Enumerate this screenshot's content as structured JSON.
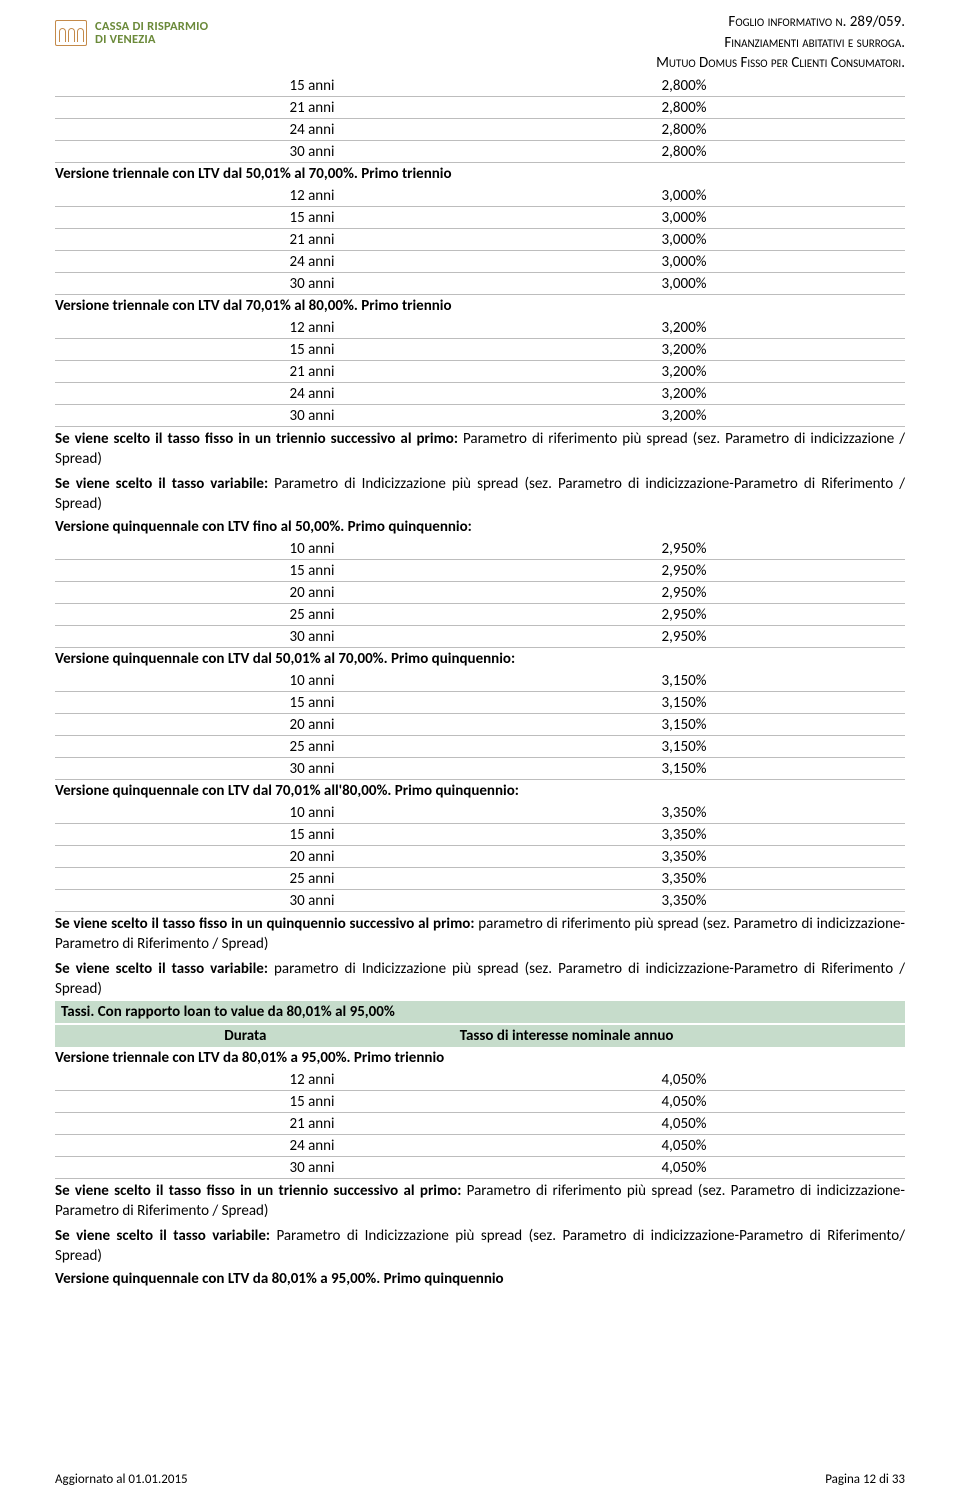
{
  "logo": {
    "line1": "CASSA DI RISPARMIO",
    "line2": "DI VENEZIA"
  },
  "header": {
    "l1a": "Foglio informativo n.",
    "l1b": " 289/059.",
    "l2": "Finanziamenti abitativi e surroga.",
    "l3a": "Mutuo Domus Fisso",
    "l3b": " per Clienti Consumatori."
  },
  "sections": [
    {
      "type": "table",
      "rows": [
        [
          "15 anni",
          "2,800%"
        ],
        [
          "21 anni",
          "2,800%"
        ],
        [
          "24 anni",
          "2,800%"
        ],
        [
          "30 anni",
          "2,800%"
        ]
      ]
    },
    {
      "type": "title",
      "text": "Versione triennale con LTV dal 50,01% al 70,00%. Primo triennio"
    },
    {
      "type": "table",
      "rows": [
        [
          "12 anni",
          "3,000%"
        ],
        [
          "15 anni",
          "3,000%"
        ],
        [
          "21 anni",
          "3,000%"
        ],
        [
          "24 anni",
          "3,000%"
        ],
        [
          "30 anni",
          "3,000%"
        ]
      ]
    },
    {
      "type": "title",
      "text": "Versione triennale con LTV dal 70,01% al 80,00%. Primo triennio"
    },
    {
      "type": "table",
      "rows": [
        [
          "12 anni",
          "3,200%"
        ],
        [
          "15 anni",
          "3,200%"
        ],
        [
          "21 anni",
          "3,200%"
        ],
        [
          "24 anni",
          "3,200%"
        ],
        [
          "30 anni",
          "3,200%"
        ]
      ]
    },
    {
      "type": "para",
      "bold": "Se viene scelto il tasso fisso in un triennio successivo al primo: ",
      "rest": "Parametro di riferimento più spread (sez. Parametro di indicizzazione / Spread)"
    },
    {
      "type": "para",
      "bold": "Se viene scelto il tasso variabile: ",
      "rest": "Parametro di Indicizzazione più spread (sez. Parametro di indicizzazione-Parametro di Riferimento / Spread)"
    },
    {
      "type": "title",
      "text": "Versione quinquennale con LTV fino al 50,00%. Primo quinquennio:"
    },
    {
      "type": "table",
      "rows": [
        [
          "10 anni",
          "2,950%"
        ],
        [
          "15 anni",
          "2,950%"
        ],
        [
          "20 anni",
          "2,950%"
        ],
        [
          "25 anni",
          "2,950%"
        ],
        [
          "30 anni",
          "2,950%"
        ]
      ]
    },
    {
      "type": "title",
      "text": "Versione quinquennale con LTV dal 50,01% al 70,00%. Primo quinquennio:"
    },
    {
      "type": "table",
      "rows": [
        [
          "10 anni",
          "3,150%"
        ],
        [
          "15 anni",
          "3,150%"
        ],
        [
          "20 anni",
          "3,150%"
        ],
        [
          "25 anni",
          "3,150%"
        ],
        [
          "30 anni",
          "3,150%"
        ]
      ]
    },
    {
      "type": "title",
      "text": "Versione quinquennale con LTV dal 70,01% all'80,00%. Primo quinquennio:"
    },
    {
      "type": "table",
      "rows": [
        [
          "10 anni",
          "3,350%"
        ],
        [
          "15 anni",
          "3,350%"
        ],
        [
          "20 anni",
          "3,350%"
        ],
        [
          "25 anni",
          "3,350%"
        ],
        [
          "30 anni",
          "3,350%"
        ]
      ]
    },
    {
      "type": "para",
      "bold": "Se viene scelto il tasso fisso in un quinquennio successivo al primo: ",
      "rest": "parametro di riferimento più spread (sez. Parametro di indicizzazione-Parametro di Riferimento / Spread)"
    },
    {
      "type": "para",
      "bold": "Se viene scelto il tasso variabile: ",
      "rest": "parametro di Indicizzazione più spread (sez. Parametro di indicizzazione-Parametro di Riferimento / Spread)"
    },
    {
      "type": "greentitle",
      "text": "Tassi. Con rapporto loan to value da 80,01% al 95,00%"
    },
    {
      "type": "greenheader",
      "c1": "Durata",
      "c2": "Tasso di interesse nominale annuo"
    },
    {
      "type": "title",
      "text": "Versione triennale con LTV da 80,01% a 95,00%. Primo triennio"
    },
    {
      "type": "table",
      "rows": [
        [
          "12 anni",
          "4,050%"
        ],
        [
          "15 anni",
          "4,050%"
        ],
        [
          "21 anni",
          "4,050%"
        ],
        [
          "24 anni",
          "4,050%"
        ],
        [
          "30 anni",
          "4,050%"
        ]
      ]
    },
    {
      "type": "para",
      "bold": "Se viene scelto il tasso fisso in un triennio successivo al primo: ",
      "rest": "Parametro di riferimento più spread (sez. Parametro di indicizzazione-Parametro di Riferimento / Spread)"
    },
    {
      "type": "para",
      "bold": "Se viene scelto il tasso variabile: ",
      "rest": "Parametro di Indicizzazione più spread (sez. Parametro di indicizzazione-Parametro di Riferimento/ Spread)"
    },
    {
      "type": "title",
      "text": "Versione quinquennale con LTV da 80,01% a 95,00%. Primo quinquennio"
    }
  ],
  "footer": {
    "left": "Aggiornato al 01.01.2015",
    "right": "Pagina 12 di 33"
  }
}
